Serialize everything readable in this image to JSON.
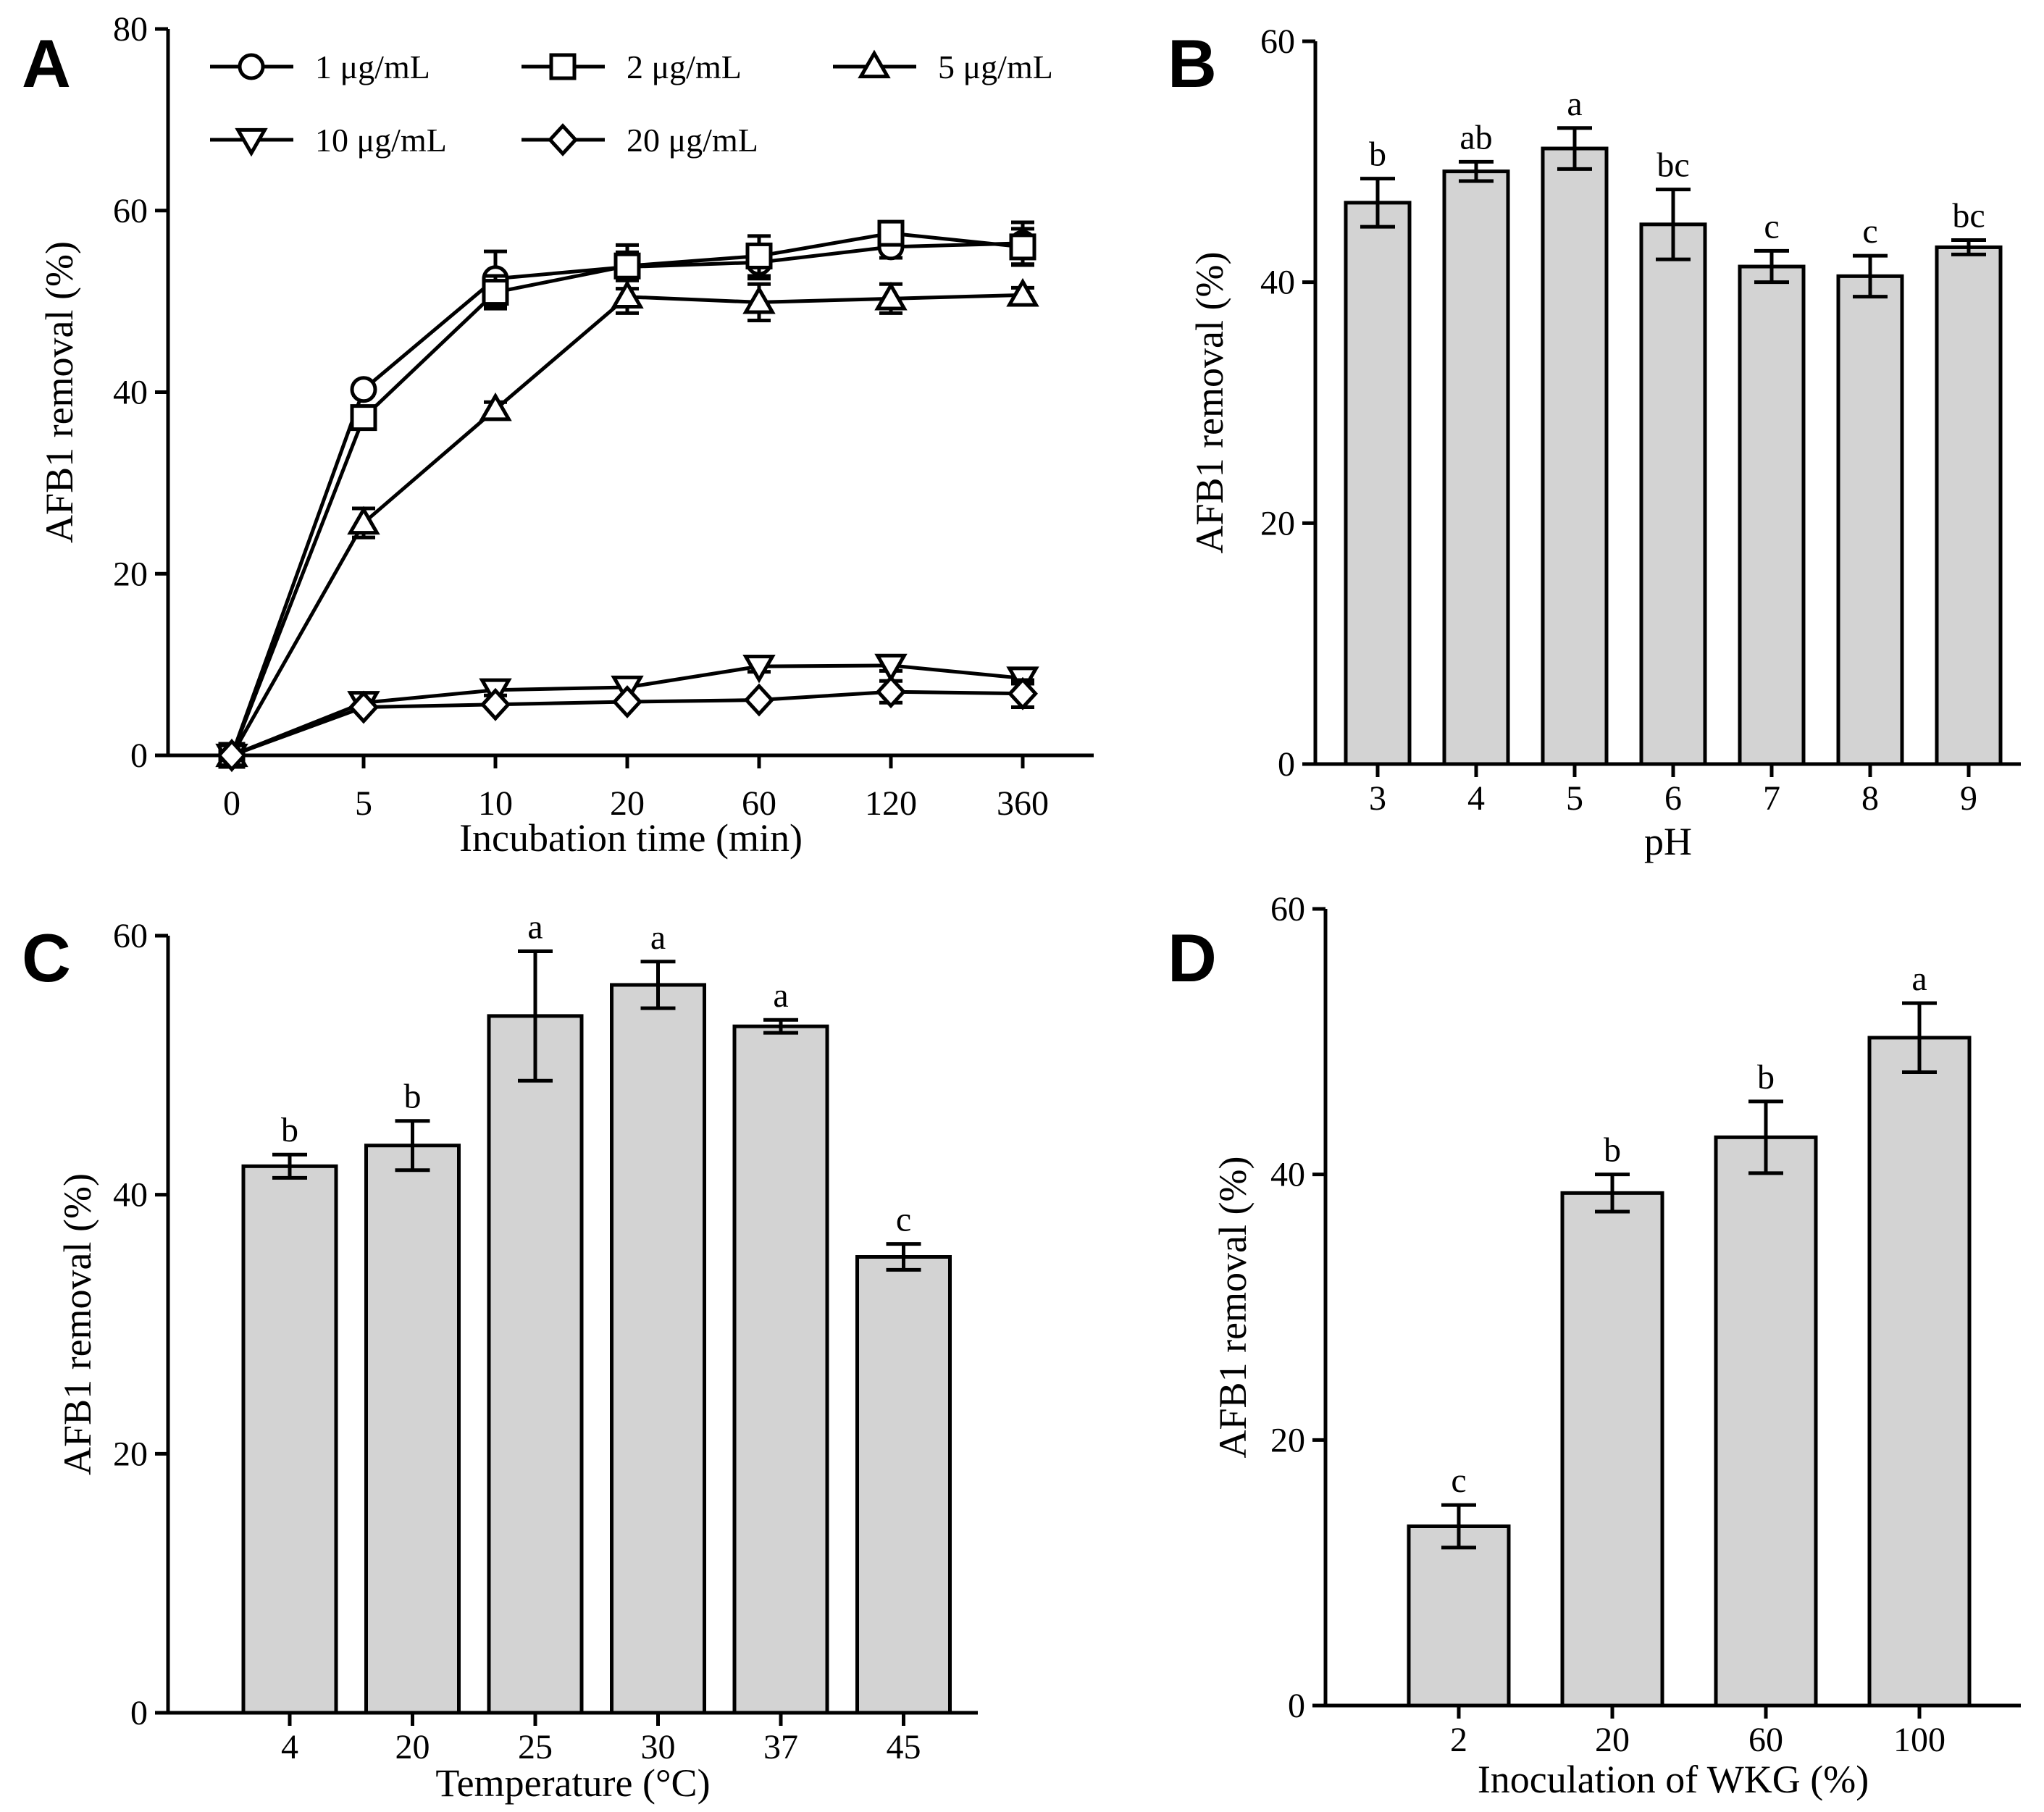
{
  "chart_data": [
    {
      "panel": "A",
      "type": "line",
      "xlabel": "Incubation time (min)",
      "ylabel": "AFB1 removal (%)",
      "categories": [
        "0",
        "5",
        "10",
        "20",
        "60",
        "120",
        "360"
      ],
      "yticks": [
        "0",
        "20",
        "40",
        "60",
        "80"
      ],
      "ylim": [
        0,
        80
      ],
      "legend_position": "top",
      "series": [
        {
          "name": "1 μg/mL",
          "marker": "circle",
          "values": [
            0,
            40.3,
            52.5,
            53.8,
            54.3,
            56.0,
            56.4
          ],
          "errors": [
            0.3,
            0.6,
            3.0,
            2.4,
            1.8,
            1.2,
            2.3
          ]
        },
        {
          "name": "2 μg/mL",
          "marker": "square",
          "values": [
            0,
            37.2,
            51.0,
            53.9,
            55.0,
            57.5,
            56.0
          ],
          "errors": [
            0.3,
            0.6,
            1.8,
            1.5,
            2.2,
            1.0,
            2.0
          ]
        },
        {
          "name": "5 μg/mL",
          "marker": "triangle-up",
          "values": [
            0,
            25.6,
            38.1,
            50.5,
            49.9,
            50.3,
            50.7
          ],
          "errors": [
            0.3,
            1.6,
            0.8,
            1.8,
            2.0,
            1.6,
            0.8
          ]
        },
        {
          "name": "10 μg/mL",
          "marker": "triangle-down",
          "values": [
            0,
            5.8,
            7.2,
            7.5,
            9.8,
            9.9,
            8.5
          ],
          "errors": [
            0.3,
            0.5,
            0.6,
            0.5,
            0.6,
            0.6,
            0.6
          ]
        },
        {
          "name": "20 μg/mL",
          "marker": "diamond",
          "values": [
            0,
            5.3,
            5.6,
            5.9,
            6.1,
            7.0,
            6.8
          ],
          "errors": [
            0.3,
            0.4,
            0.4,
            0.4,
            0.4,
            1.2,
            1.5
          ]
        }
      ]
    },
    {
      "panel": "B",
      "type": "bar",
      "xlabel": "pH",
      "ylabel": "AFB1 removal (%)",
      "categories": [
        "3",
        "4",
        "5",
        "6",
        "7",
        "8",
        "9"
      ],
      "values": [
        46.6,
        49.2,
        51.1,
        44.8,
        41.3,
        40.5,
        42.9
      ],
      "errors": [
        2.0,
        0.8,
        1.7,
        2.9,
        1.3,
        1.7,
        0.6
      ],
      "significance": [
        "b",
        "ab",
        "a",
        "bc",
        "c",
        "c",
        "bc"
      ],
      "yticks": [
        "0",
        "20",
        "40",
        "60"
      ],
      "ylim": [
        0,
        60
      ]
    },
    {
      "panel": "C",
      "type": "bar",
      "xlabel": "Temperature (°C)",
      "ylabel": "AFB1 removal (%)",
      "categories": [
        "4",
        "20",
        "25",
        "30",
        "37",
        "45"
      ],
      "values": [
        42.2,
        43.8,
        53.8,
        56.2,
        53.0,
        35.2
      ],
      "errors": [
        0.9,
        1.9,
        5.0,
        1.8,
        0.5,
        1.0
      ],
      "significance": [
        "b",
        "b",
        "a",
        "a",
        "a",
        "c"
      ],
      "yticks": [
        "0",
        "20",
        "40",
        "60"
      ],
      "ylim": [
        0,
        60
      ]
    },
    {
      "panel": "D",
      "type": "bar",
      "xlabel": "Inoculation of WKG (%)",
      "ylabel": "AFB1 removal (%)",
      "categories": [
        "2",
        "20",
        "60",
        "100"
      ],
      "values": [
        13.5,
        38.6,
        42.8,
        50.3
      ],
      "errors": [
        1.6,
        1.4,
        2.7,
        2.6
      ],
      "significance": [
        "c",
        "b",
        "b",
        "a"
      ],
      "yticks": [
        "0",
        "20",
        "40",
        "60"
      ],
      "ylim": [
        0,
        60
      ]
    }
  ]
}
